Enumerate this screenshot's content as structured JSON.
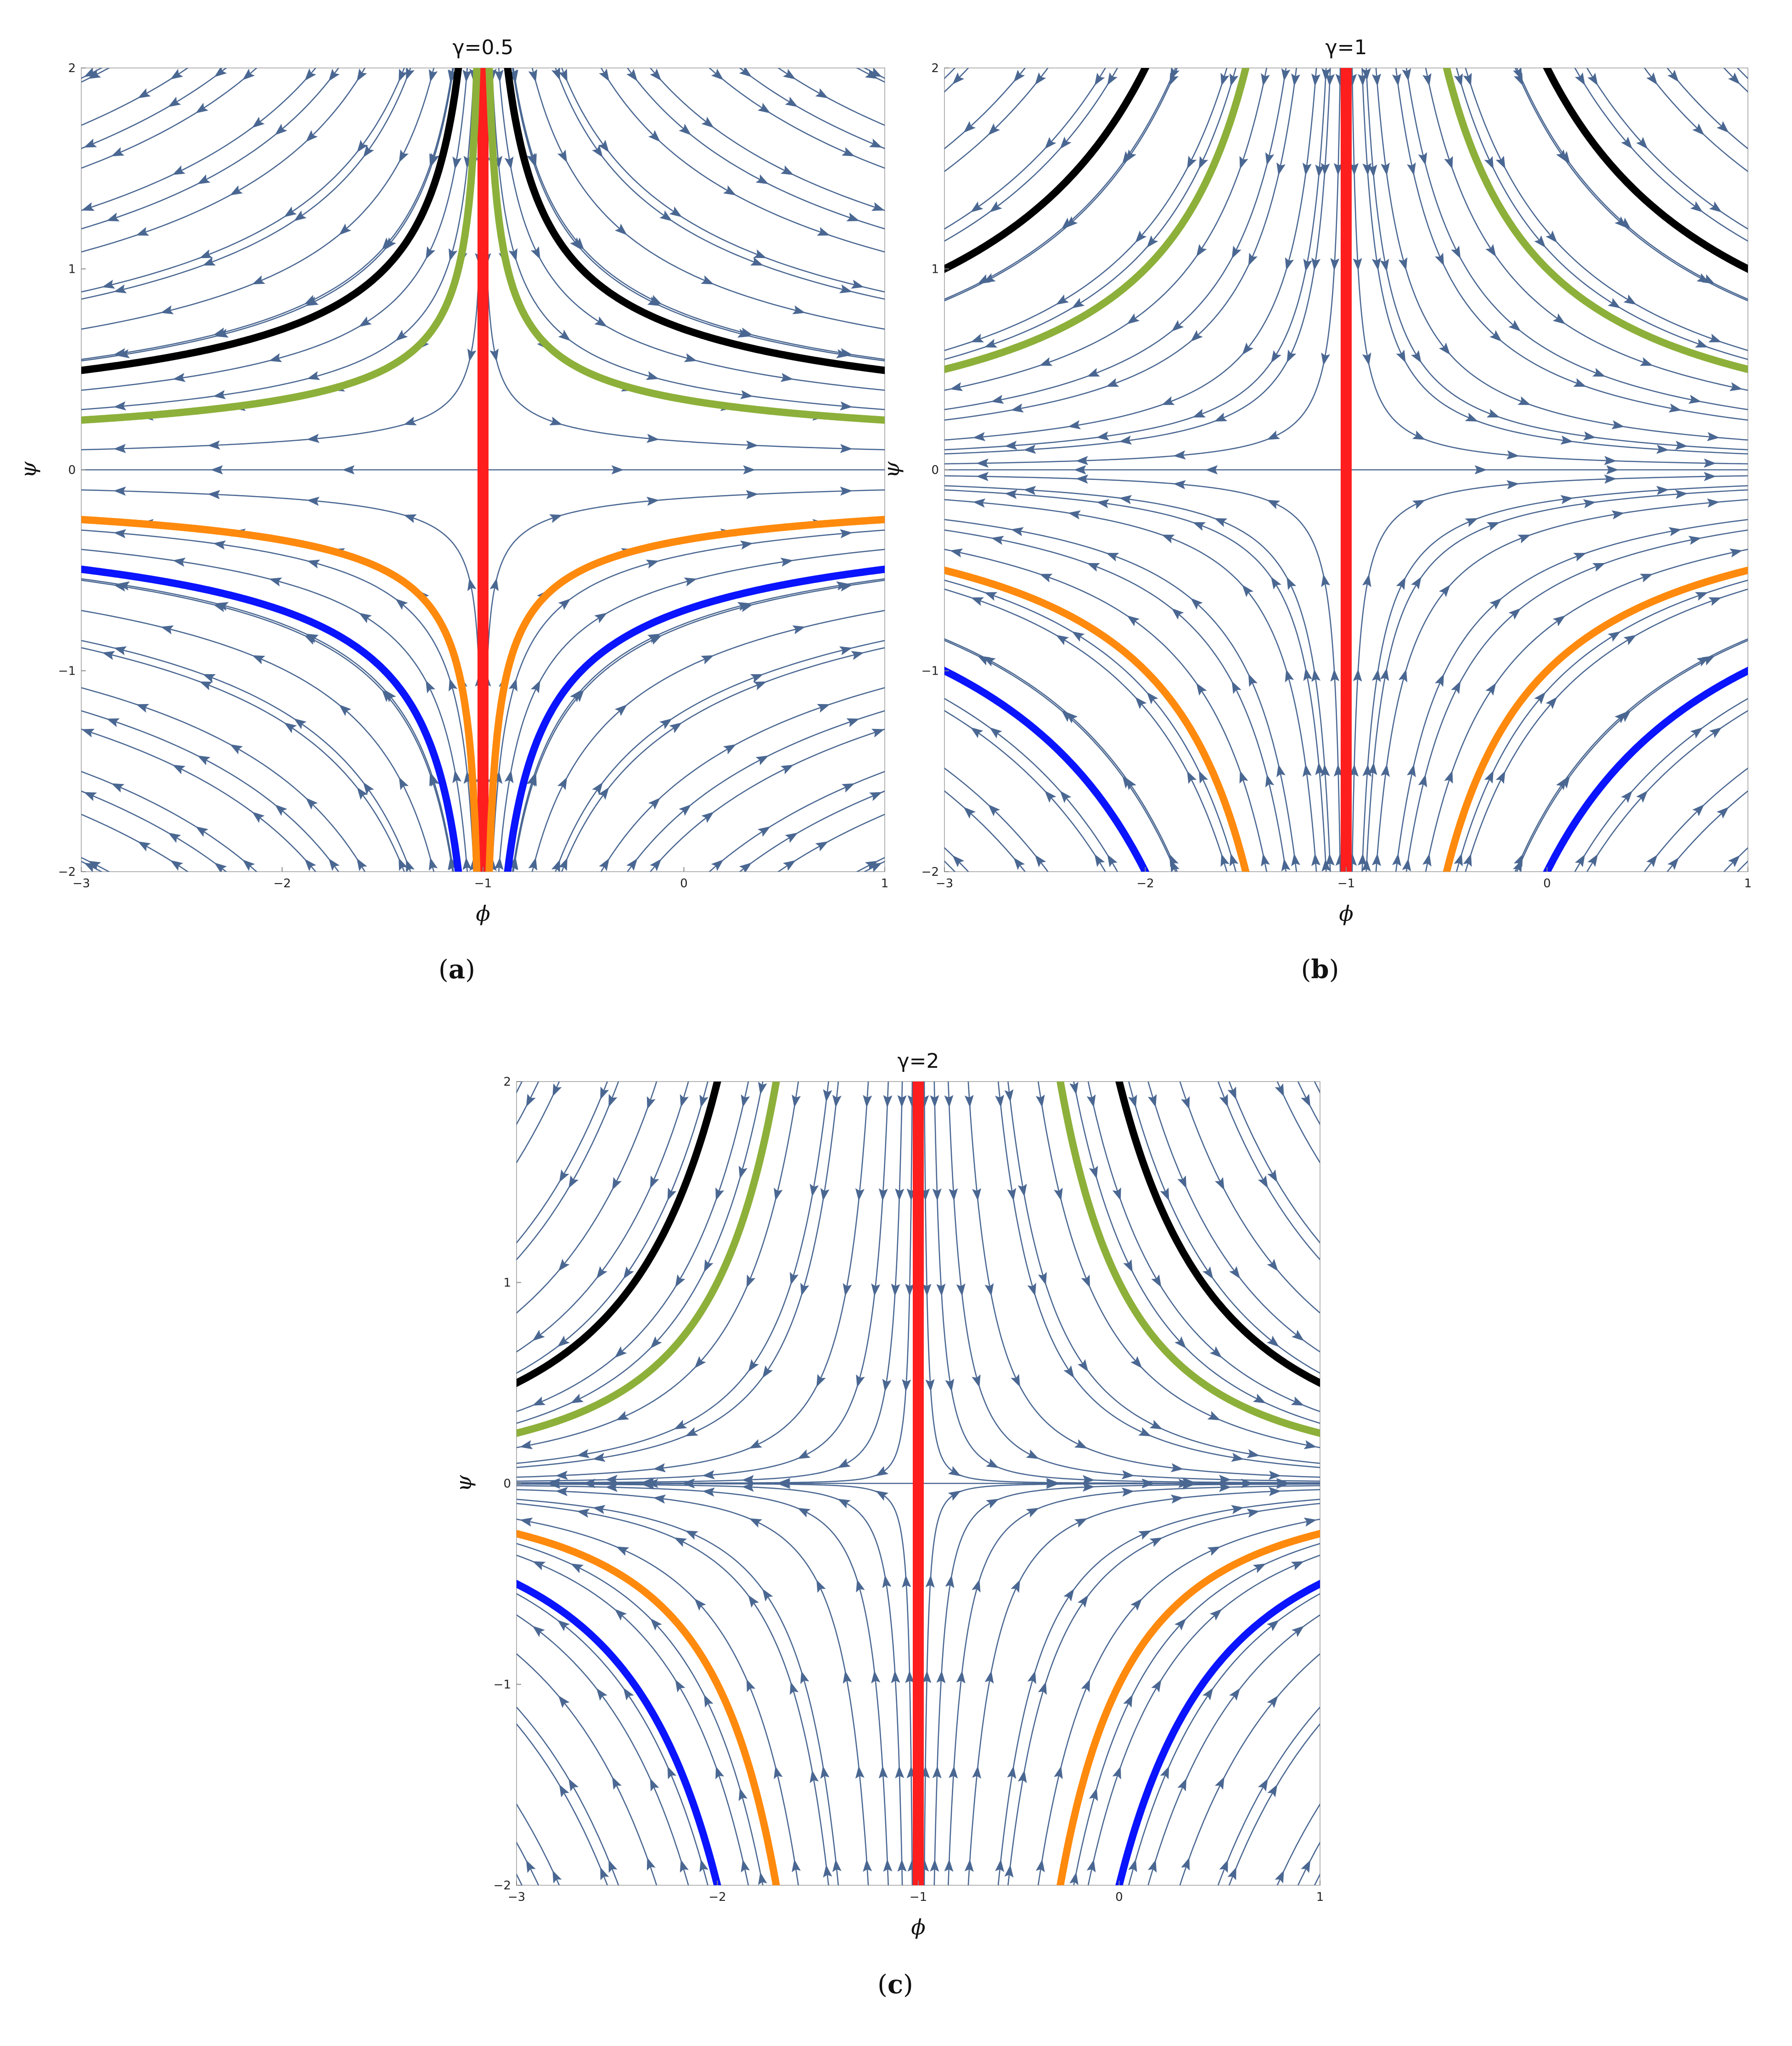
{
  "chart_data": [
    {
      "type": "streamplot",
      "title": "γ=0.5",
      "caption": {
        "open": "(",
        "letter": "a",
        "close": ")"
      },
      "xlabel": "ϕ",
      "ylabel": "ψ",
      "gamma": 0.5,
      "xlim": [
        -3,
        1
      ],
      "ylim": [
        -2,
        2
      ],
      "xticks": [
        -3,
        -2,
        -1,
        0,
        1
      ],
      "yticks": [
        -2,
        -1,
        0,
        1,
        2
      ],
      "xtick_labels": [
        "−3",
        "−2",
        "−1",
        "0",
        "1"
      ],
      "ytick_labels": [
        "−2",
        "−1",
        "0",
        "1",
        "2"
      ],
      "vector_field": "dϕ/dt = ϕ + 1, dψ/dt = −γψ (saddle at ϕ = −1, ψ = 0)",
      "stream_color": "#4a6792",
      "curves": [
        {
          "color": "#ff1e1e",
          "kind": "vertical",
          "x": -1
        },
        {
          "color": "#000000",
          "kind": "hyperbola",
          "k": 0.7
        },
        {
          "color": "#8db03a",
          "kind": "hyperbola",
          "k": 0.35
        },
        {
          "color": "#ff8a0d",
          "kind": "hyperbola",
          "k": -0.35
        },
        {
          "color": "#0a14ff",
          "kind": "hyperbola",
          "k": -0.7
        }
      ]
    },
    {
      "type": "streamplot",
      "title": "γ=1",
      "caption": {
        "open": "(",
        "letter": "b",
        "close": ")"
      },
      "xlabel": "ϕ",
      "ylabel": "ψ",
      "gamma": 1,
      "xlim": [
        -3,
        1
      ],
      "ylim": [
        -2,
        2
      ],
      "xticks": [
        -3,
        -2,
        -1,
        0,
        1
      ],
      "yticks": [
        -2,
        -1,
        0,
        1,
        2
      ],
      "xtick_labels": [
        "−3",
        "−2",
        "−1",
        "0",
        "1"
      ],
      "ytick_labels": [
        "−2",
        "−1",
        "0",
        "1",
        "2"
      ],
      "vector_field": "dϕ/dt = ϕ + 1, dψ/dt = −γψ (saddle at ϕ = −1, ψ = 0)",
      "stream_color": "#4a6792",
      "curves": [
        {
          "color": "#ff1e1e",
          "kind": "vertical",
          "x": -1
        },
        {
          "color": "#000000",
          "kind": "hyperbola",
          "k": 2.0
        },
        {
          "color": "#8db03a",
          "kind": "hyperbola",
          "k": 1.0
        },
        {
          "color": "#ff8a0d",
          "kind": "hyperbola",
          "k": -1.0
        },
        {
          "color": "#0a14ff",
          "kind": "hyperbola",
          "k": -2.0
        }
      ]
    },
    {
      "type": "streamplot",
      "title": "γ=2",
      "caption": {
        "open": "(",
        "letter": "c",
        "close": ")"
      },
      "xlabel": "ϕ",
      "ylabel": "ψ",
      "gamma": 2,
      "xlim": [
        -3,
        1
      ],
      "ylim": [
        -2,
        2
      ],
      "xticks": [
        -3,
        -2,
        -1,
        0,
        1
      ],
      "yticks": [
        -2,
        -1,
        0,
        1,
        2
      ],
      "xtick_labels": [
        "−3",
        "−2",
        "−1",
        "0",
        "1"
      ],
      "ytick_labels": [
        "−2",
        "−1",
        "0",
        "1",
        "2"
      ],
      "vector_field": "dϕ/dt = ϕ + 1, dψ/dt = −γψ (saddle at ϕ = −1, ψ = 0)",
      "stream_color": "#4a6792",
      "curves": [
        {
          "color": "#ff1e1e",
          "kind": "vertical",
          "x": -1
        },
        {
          "color": "#000000",
          "kind": "hyperbola",
          "k": 2.0
        },
        {
          "color": "#8db03a",
          "kind": "hyperbola",
          "k": 1.0
        },
        {
          "color": "#ff8a0d",
          "kind": "hyperbola",
          "k": -1.0
        },
        {
          "color": "#0a14ff",
          "kind": "hyperbola",
          "k": -2.0
        }
      ]
    }
  ]
}
